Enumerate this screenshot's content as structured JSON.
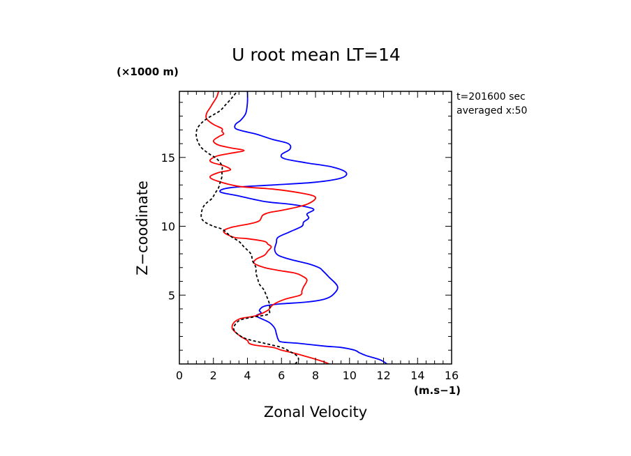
{
  "chart_data": {
    "type": "line",
    "title": "U root mean LT=14",
    "xlabel": "Zonal Velocity",
    "ylabel": "Z−coodinate",
    "x_unit": "(m.s−1)",
    "y_unit": "(×1000 m)",
    "xlim": [
      0,
      16
    ],
    "ylim": [
      0,
      19.8
    ],
    "x_ticks": [
      0,
      2,
      4,
      6,
      8,
      10,
      12,
      14,
      16
    ],
    "y_ticks": [
      5,
      10,
      15
    ],
    "annotations": [
      "t=201600 sec",
      "averaged  x:50"
    ],
    "grid": false,
    "series": [
      {
        "color": "#0000ff",
        "dash": "solid",
        "points": [
          [
            12.2,
            0
          ],
          [
            11.8,
            0.3
          ],
          [
            11.0,
            0.6
          ],
          [
            10.6,
            0.8
          ],
          [
            10.3,
            1.0
          ],
          [
            9.5,
            1.2
          ],
          [
            8.5,
            1.3
          ],
          [
            7.0,
            1.5
          ],
          [
            6.0,
            1.6
          ],
          [
            5.8,
            1.8
          ],
          [
            5.7,
            2.2
          ],
          [
            5.6,
            2.6
          ],
          [
            5.3,
            3.0
          ],
          [
            4.8,
            3.3
          ],
          [
            4.5,
            3.5
          ],
          [
            4.8,
            3.7
          ],
          [
            4.7,
            3.9
          ],
          [
            5.0,
            4.2
          ],
          [
            5.8,
            4.35
          ],
          [
            7.5,
            4.5
          ],
          [
            8.5,
            4.7
          ],
          [
            9.0,
            5.0
          ],
          [
            9.3,
            5.6
          ],
          [
            8.8,
            6.3
          ],
          [
            8.4,
            6.8
          ],
          [
            8.2,
            7.0
          ],
          [
            7.5,
            7.3
          ],
          [
            6.5,
            7.6
          ],
          [
            5.8,
            7.9
          ],
          [
            5.6,
            8.3
          ],
          [
            5.7,
            8.8
          ],
          [
            5.8,
            9.2
          ],
          [
            6.5,
            9.6
          ],
          [
            7.2,
            10.0
          ],
          [
            7.3,
            10.3
          ],
          [
            7.6,
            10.6
          ],
          [
            7.5,
            10.9
          ],
          [
            7.9,
            11.2
          ],
          [
            7.5,
            11.4
          ],
          [
            6.5,
            11.6
          ],
          [
            5.0,
            11.8
          ],
          [
            3.5,
            12.2
          ],
          [
            2.4,
            12.5
          ],
          [
            3.0,
            12.8
          ],
          [
            5.5,
            13.0
          ],
          [
            8.0,
            13.2
          ],
          [
            9.5,
            13.5
          ],
          [
            9.8,
            13.9
          ],
          [
            9.0,
            14.3
          ],
          [
            7.5,
            14.6
          ],
          [
            6.2,
            14.9
          ],
          [
            6.0,
            15.2
          ],
          [
            6.5,
            15.6
          ],
          [
            6.4,
            16.0
          ],
          [
            5.5,
            16.3
          ],
          [
            5.0,
            16.5
          ],
          [
            4.5,
            16.7
          ],
          [
            3.8,
            16.9
          ],
          [
            3.3,
            17.1
          ],
          [
            3.3,
            17.4
          ],
          [
            3.6,
            17.7
          ],
          [
            3.9,
            18.2
          ],
          [
            4.0,
            19.0
          ],
          [
            4.0,
            19.8
          ]
        ]
      },
      {
        "color": "#ff0000",
        "dash": "solid",
        "points": [
          [
            8.8,
            0
          ],
          [
            8.5,
            0.15
          ],
          [
            8.0,
            0.35
          ],
          [
            7.3,
            0.6
          ],
          [
            6.7,
            0.8
          ],
          [
            6.0,
            1.0
          ],
          [
            5.5,
            1.2
          ],
          [
            4.5,
            1.35
          ],
          [
            4.1,
            1.5
          ],
          [
            4.0,
            1.7
          ],
          [
            3.6,
            2.0
          ],
          [
            3.3,
            2.3
          ],
          [
            3.1,
            2.6
          ],
          [
            3.2,
            3.0
          ],
          [
            3.6,
            3.3
          ],
          [
            4.5,
            3.5
          ],
          [
            5.2,
            3.9
          ],
          [
            5.5,
            4.3
          ],
          [
            6.2,
            4.7
          ],
          [
            7.1,
            5.0
          ],
          [
            7.2,
            5.3
          ],
          [
            7.3,
            5.6
          ],
          [
            7.5,
            6.1
          ],
          [
            7.2,
            6.4
          ],
          [
            6.8,
            6.6
          ],
          [
            5.8,
            6.8
          ],
          [
            5.0,
            7.0
          ],
          [
            4.4,
            7.3
          ],
          [
            4.5,
            7.6
          ],
          [
            5.0,
            7.9
          ],
          [
            5.2,
            8.2
          ],
          [
            5.4,
            8.5
          ],
          [
            5.2,
            8.7
          ],
          [
            5.0,
            8.9
          ],
          [
            4.0,
            9.1
          ],
          [
            3.2,
            9.2
          ],
          [
            2.6,
            9.6
          ],
          [
            3.0,
            9.9
          ],
          [
            4.2,
            10.2
          ],
          [
            4.7,
            10.4
          ],
          [
            4.9,
            10.8
          ],
          [
            5.3,
            11.0
          ],
          [
            6.2,
            11.2
          ],
          [
            7.5,
            11.6
          ],
          [
            8.0,
            12.1
          ],
          [
            7.2,
            12.4
          ],
          [
            5.5,
            12.7
          ],
          [
            3.5,
            12.9
          ],
          [
            2.2,
            13.3
          ],
          [
            1.8,
            13.6
          ],
          [
            2.3,
            13.9
          ],
          [
            3.0,
            14.1
          ],
          [
            2.6,
            14.4
          ],
          [
            2.0,
            14.6
          ],
          [
            1.8,
            14.8
          ],
          [
            2.2,
            15.1
          ],
          [
            3.0,
            15.3
          ],
          [
            3.8,
            15.5
          ],
          [
            3.0,
            15.7
          ],
          [
            2.3,
            15.9
          ],
          [
            2.0,
            16.2
          ],
          [
            2.3,
            16.5
          ],
          [
            2.6,
            16.7
          ],
          [
            2.5,
            16.9
          ],
          [
            2.5,
            17.1
          ],
          [
            2.0,
            17.4
          ],
          [
            1.6,
            17.8
          ],
          [
            1.6,
            18.2
          ],
          [
            1.8,
            18.6
          ],
          [
            2.0,
            19.0
          ],
          [
            2.2,
            19.4
          ],
          [
            2.3,
            19.8
          ]
        ]
      },
      {
        "color": "#000000",
        "dash": "dashed",
        "points": [
          [
            6.8,
            0
          ],
          [
            7.0,
            0.3
          ],
          [
            6.9,
            0.6
          ],
          [
            6.5,
            0.9
          ],
          [
            6.0,
            1.2
          ],
          [
            5.0,
            1.5
          ],
          [
            4.0,
            1.8
          ],
          [
            3.5,
            2.1
          ],
          [
            3.2,
            2.5
          ],
          [
            3.3,
            2.9
          ],
          [
            3.6,
            3.2
          ],
          [
            4.3,
            3.4
          ],
          [
            5.2,
            3.6
          ],
          [
            5.3,
            3.9
          ],
          [
            5.3,
            4.3
          ],
          [
            5.2,
            4.7
          ],
          [
            5.1,
            5.0
          ],
          [
            5.0,
            5.3
          ],
          [
            4.9,
            5.5
          ],
          [
            4.7,
            5.8
          ],
          [
            4.6,
            6.2
          ],
          [
            4.5,
            6.6
          ],
          [
            4.5,
            7.0
          ],
          [
            4.3,
            7.5
          ],
          [
            4.2,
            8.0
          ],
          [
            3.8,
            8.5
          ],
          [
            3.5,
            8.9
          ],
          [
            3.1,
            9.2
          ],
          [
            2.8,
            9.5
          ],
          [
            2.5,
            9.8
          ],
          [
            2.0,
            10.0
          ],
          [
            1.5,
            10.3
          ],
          [
            1.3,
            10.6
          ],
          [
            1.3,
            11.0
          ],
          [
            1.4,
            11.4
          ],
          [
            1.6,
            11.7
          ],
          [
            1.9,
            12.0
          ],
          [
            2.1,
            12.4
          ],
          [
            2.3,
            12.8
          ],
          [
            2.4,
            13.2
          ],
          [
            2.5,
            13.6
          ],
          [
            2.5,
            14.0
          ],
          [
            2.5,
            14.4
          ],
          [
            2.2,
            14.9
          ],
          [
            1.7,
            15.3
          ],
          [
            1.3,
            15.7
          ],
          [
            1.1,
            16.1
          ],
          [
            1.0,
            16.5
          ],
          [
            1.0,
            16.9
          ],
          [
            1.1,
            17.2
          ],
          [
            1.3,
            17.5
          ],
          [
            1.6,
            17.8
          ],
          [
            2.0,
            18.1
          ],
          [
            2.4,
            18.4
          ],
          [
            2.7,
            18.8
          ],
          [
            3.0,
            19.2
          ],
          [
            3.2,
            19.5
          ],
          [
            3.4,
            19.8
          ]
        ]
      }
    ]
  }
}
